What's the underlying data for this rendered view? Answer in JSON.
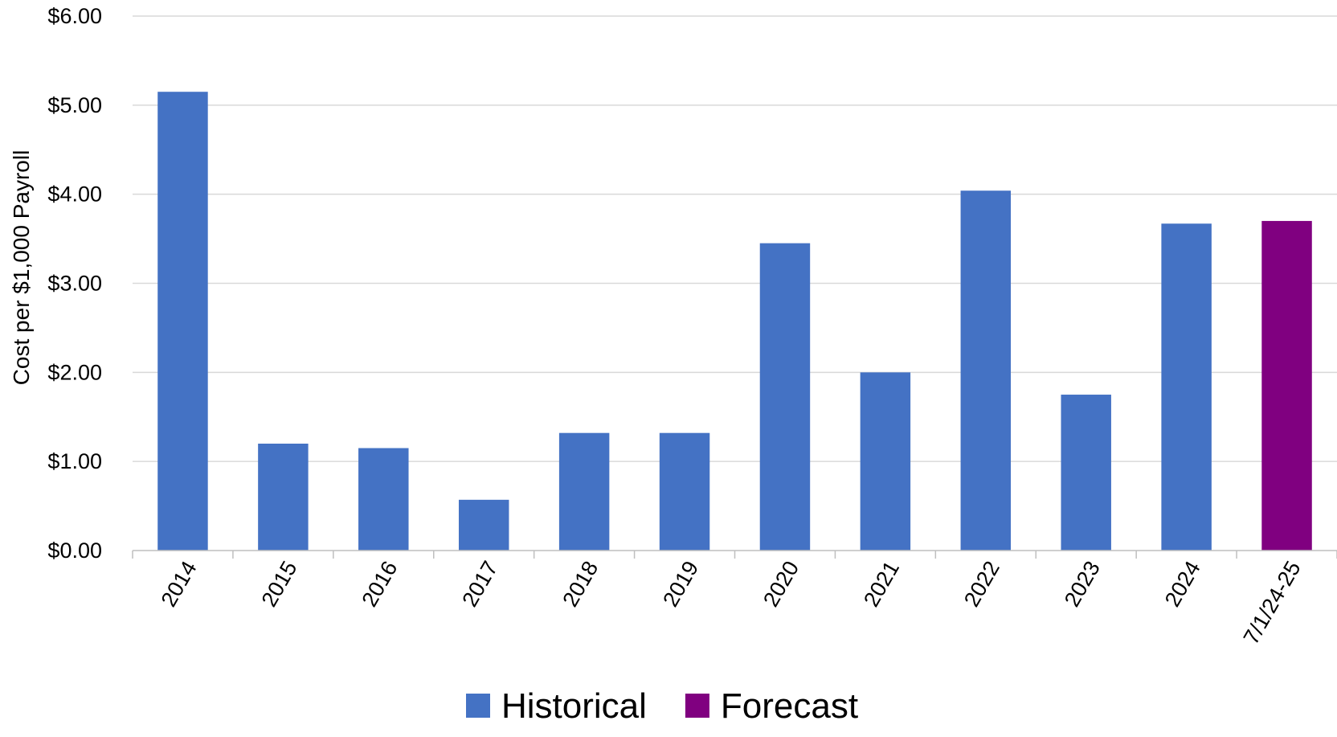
{
  "chart_data": {
    "type": "bar",
    "title": "",
    "xlabel": "",
    "ylabel": "Cost per $1,000 Payroll",
    "ylim": [
      0,
      6
    ],
    "yticks": [
      {
        "value": 0,
        "label": "$0.00"
      },
      {
        "value": 1,
        "label": "$1.00"
      },
      {
        "value": 2,
        "label": "$2.00"
      },
      {
        "value": 3,
        "label": "$3.00"
      },
      {
        "value": 4,
        "label": "$4.00"
      },
      {
        "value": 5,
        "label": "$5.00"
      },
      {
        "value": 6,
        "label": "$6.00"
      }
    ],
    "grid": true,
    "legend": "bottom",
    "categories": [
      "2014",
      "2015",
      "2016",
      "2017",
      "2018",
      "2019",
      "2020",
      "2021",
      "2022",
      "2023",
      "2024",
      "7/1/24-25"
    ],
    "series": [
      {
        "name": "Historical",
        "color": "#4472c4",
        "values": [
          5.15,
          1.2,
          1.15,
          0.57,
          1.32,
          1.32,
          3.45,
          2.0,
          4.04,
          1.75,
          3.67,
          null
        ]
      },
      {
        "name": "Forecast",
        "color": "#800080",
        "values": [
          null,
          null,
          null,
          null,
          null,
          null,
          null,
          null,
          null,
          null,
          null,
          3.7
        ]
      }
    ]
  }
}
